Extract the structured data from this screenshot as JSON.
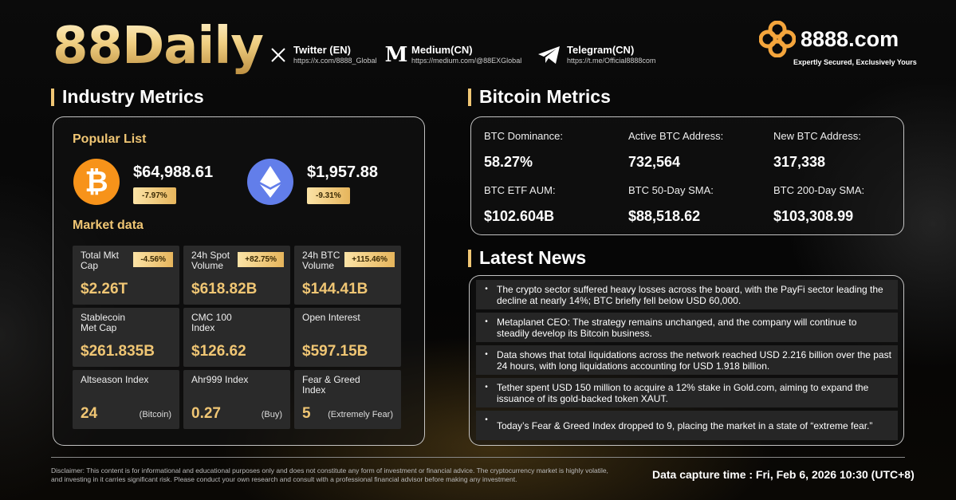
{
  "header": {
    "brand": "88Daily",
    "socials": [
      {
        "icon": "x-icon",
        "name": "Twitter (EN)",
        "url": "https://x.com/8888_Global"
      },
      {
        "icon": "medium-icon",
        "name": "Medium(CN)",
        "url": "https://medium.com/@88EXGlobal"
      },
      {
        "icon": "telegram-icon",
        "name": "Telegram(CN)",
        "url": "https://t.me/Official8888com"
      }
    ],
    "logo_text": "8888.com",
    "tagline": "Expertly Secured, Exclusively Yours"
  },
  "industry": {
    "title": "Industry Metrics",
    "popular_title": "Popular List",
    "btc": {
      "price": "$64,988.61",
      "change": "-7.97%"
    },
    "eth": {
      "price": "$1,957.88",
      "change": "-9.31%"
    },
    "market_title": "Market data",
    "cells": [
      {
        "label": "Total Mkt Cap",
        "value": "$2.26T",
        "pct": "-4.56%",
        "note": ""
      },
      {
        "label": "24h Spot Volume",
        "value": "$618.82B",
        "pct": "+82.75%",
        "note": ""
      },
      {
        "label": "24h BTC Volume",
        "value": "$144.41B",
        "pct": "+115.46%",
        "note": ""
      },
      {
        "label": "Stablecoin Met Cap",
        "value": "$261.835B",
        "pct": "",
        "note": ""
      },
      {
        "label": "CMC 100 Index",
        "value": "$126.62",
        "pct": "",
        "note": ""
      },
      {
        "label": "Open Interest",
        "value": "$597.15B",
        "pct": "",
        "note": ""
      },
      {
        "label": "Altseason Index",
        "value": "24",
        "pct": "",
        "note": "(Bitcoin)"
      },
      {
        "label": "Ahr999 Index",
        "value": "0.27",
        "pct": "",
        "note": "(Buy)"
      },
      {
        "label": "Fear & Greed Index",
        "value": "5",
        "pct": "",
        "note": "(Extremely Fear)"
      }
    ]
  },
  "bitcoin": {
    "title": "Bitcoin Metrics",
    "metrics": [
      {
        "label": "BTC Dominance:",
        "value": "58.27%"
      },
      {
        "label": "Active BTC Address:",
        "value": "732,564"
      },
      {
        "label": "New BTC Address:",
        "value": "317,338"
      },
      {
        "label": "BTC ETF AUM:",
        "value": "$102.604B"
      },
      {
        "label": "BTC 50-Day SMA:",
        "value": "$88,518.62"
      },
      {
        "label": "BTC 200-Day SMA:",
        "value": "$103,308.99"
      }
    ]
  },
  "news": {
    "title": "Latest News",
    "items": [
      "The crypto sector suffered heavy losses across the board, with the PayFi sector leading the decline at nearly 14%; BTC briefly fell below USD 60,000.",
      "Metaplanet CEO: The strategy remains unchanged, and the company will continue to steadily develop its Bitcoin business.",
      "Data shows that total liquidations across the network reached USD 2.216 billion over the past 24 hours, with long liquidations accounting for USD 1.918 billion.",
      "Tether spent USD 150 million to acquire a 12% stake in Gold.com, aiming to expand the issuance of its gold-backed token XAUT.",
      "Today’s Fear & Greed Index dropped to 9, placing the market in a state of “extreme fear.”"
    ]
  },
  "footer": {
    "disclaimer": "Disclaimer: This content is for informational and educational purposes only and does not constitute any form of investment or financial advice. The cryptocurrency market is highly volatile, and investing in it carries significant risk. Please conduct your own research and consult with a professional financial advisor before making any investment.",
    "capture": "Data capture time : Fri, Feb 6, 2026 10:30 (UTC+8)"
  },
  "colors": {
    "accent": "#f0c674",
    "btc": "#f7931a",
    "eth": "#627eea"
  }
}
